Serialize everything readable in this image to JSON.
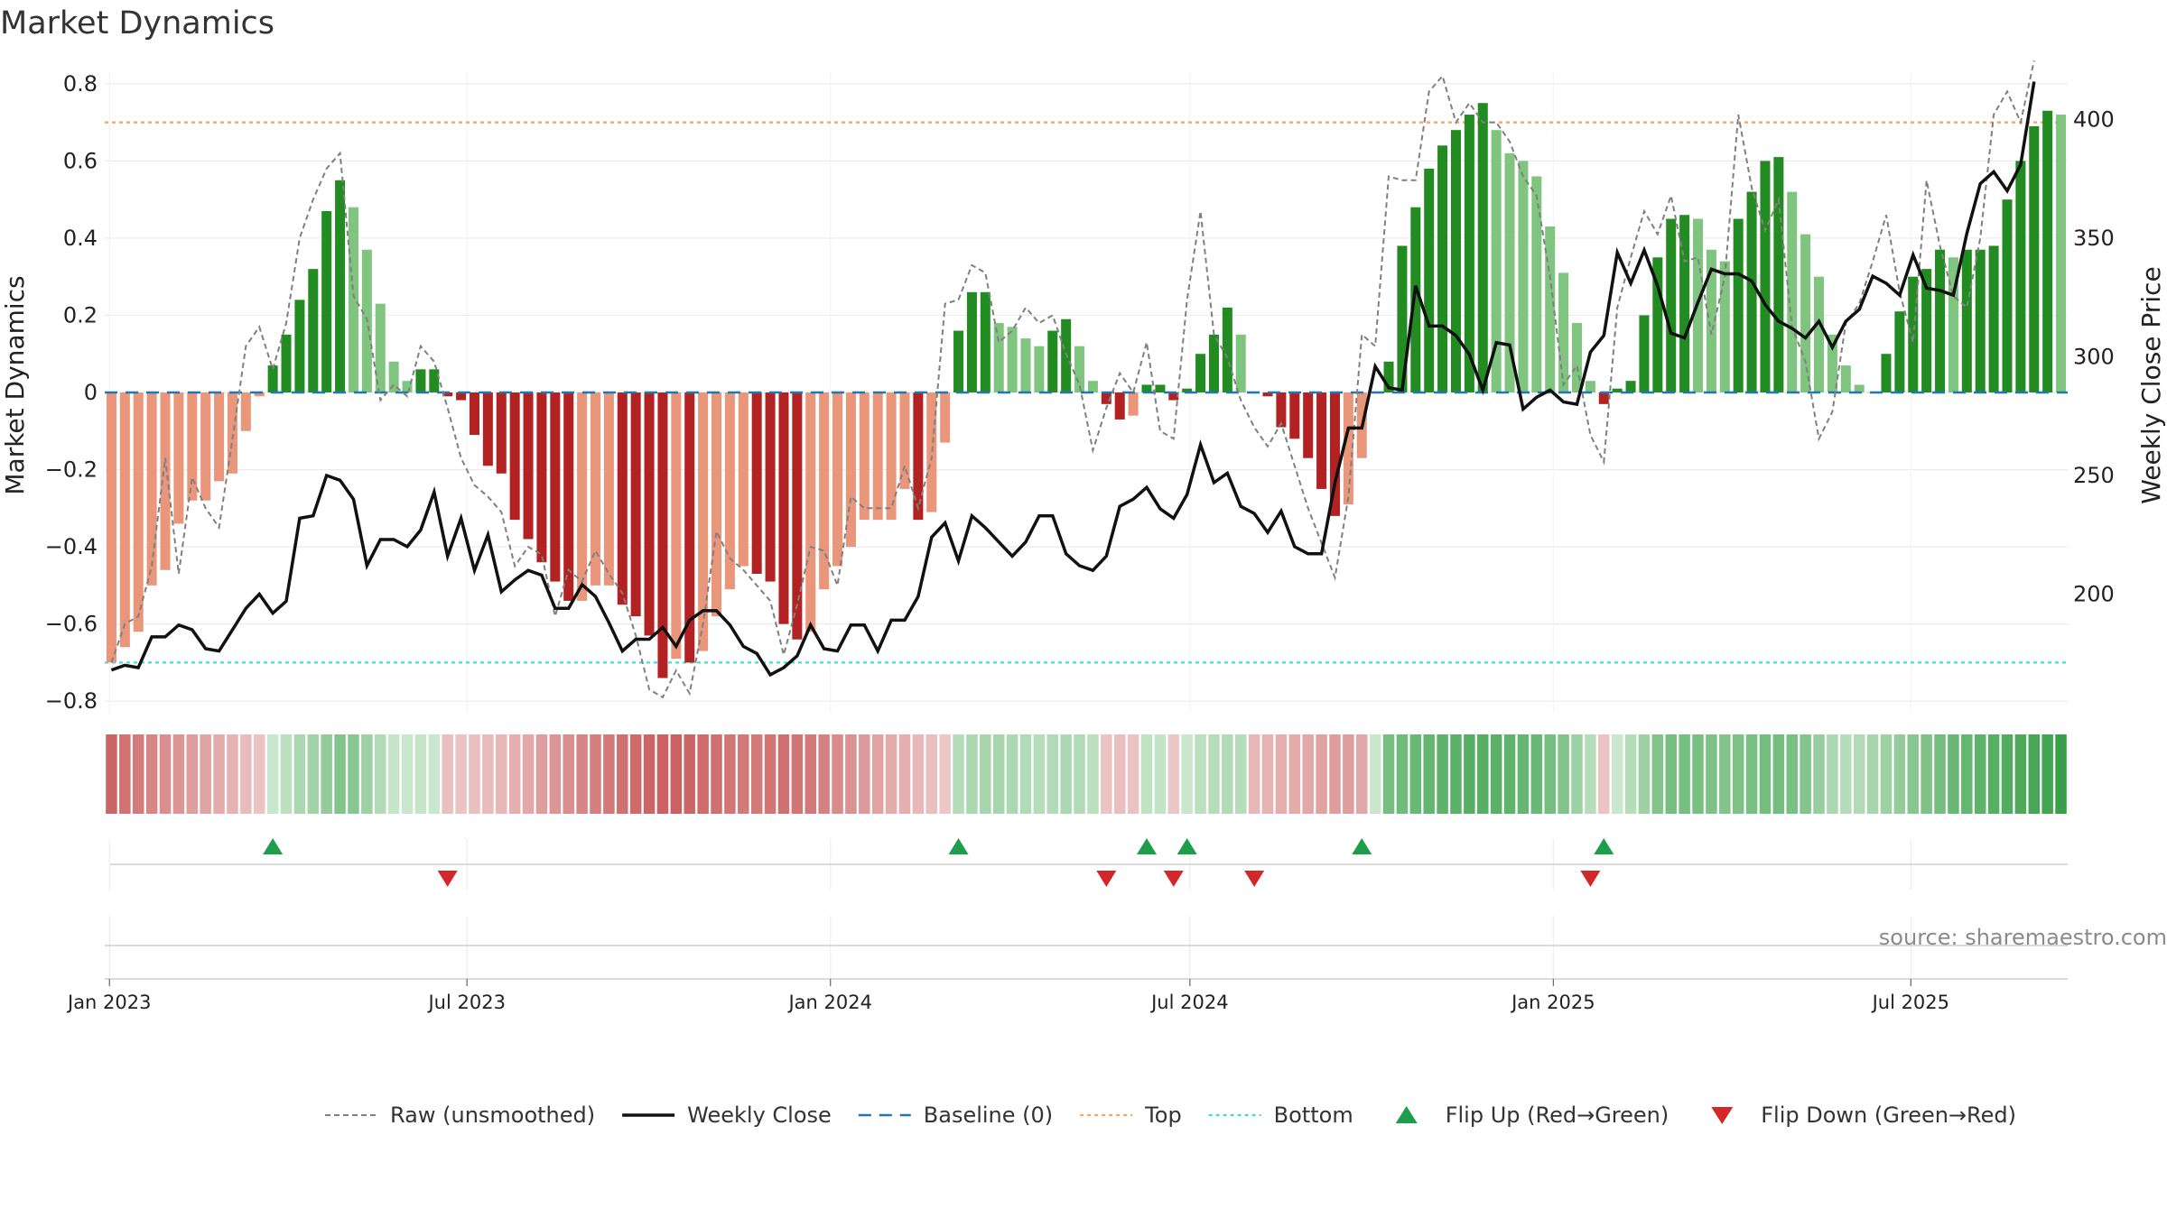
{
  "title": "Market Dynamics",
  "source_text": "source: sharemaestro.com",
  "colors": {
    "green_dark": "#228b22",
    "green_light": "#7fc47f",
    "red_dark": "#b22222",
    "red_light": "#e9967a",
    "close_line": "#111111",
    "raw_line": "#808080",
    "baseline": "#1f77b4",
    "top_line": "#f4a460",
    "bottom_line": "#40e0d0",
    "flip_up": "#1e9e4a",
    "flip_down": "#d62728"
  },
  "legend": [
    {
      "label": "Raw (unsmoothed)",
      "kind": "raw"
    },
    {
      "label": "Weekly Close",
      "kind": "close"
    },
    {
      "label": "Baseline (0)",
      "kind": "baseline"
    },
    {
      "label": "Top",
      "kind": "top"
    },
    {
      "label": "Bottom",
      "kind": "bottom"
    },
    {
      "label": "Flip Up (Red→Green)",
      "kind": "up"
    },
    {
      "label": "Flip Down (Green→Red)",
      "kind": "down"
    }
  ],
  "chart_data": {
    "type": "bar",
    "ylabel": "Market Dynamics",
    "y2label": "Weekly Close Price",
    "ylim": [
      -0.83,
      0.83
    ],
    "y2lim": [
      150,
      420
    ],
    "yticks": [
      "−0.8",
      "−0.6",
      "−0.4",
      "−0.2",
      "0",
      "0.2",
      "0.4",
      "0.6",
      "0.8"
    ],
    "y2ticks": [
      "200",
      "250",
      "300",
      "350",
      "400"
    ],
    "x_start": "2023-01-02",
    "x_end": "2025-09-15",
    "x_ticks": [
      {
        "date": "2023-01-01",
        "label": "Jan 2023"
      },
      {
        "date": "2023-07-01",
        "label": "Jul 2023"
      },
      {
        "date": "2024-01-01",
        "label": "Jan 2024"
      },
      {
        "date": "2024-07-01",
        "label": "Jul 2024"
      },
      {
        "date": "2025-01-01",
        "label": "Jan 2025"
      },
      {
        "date": "2025-07-01",
        "label": "Jul 2025"
      }
    ],
    "top": 0.7,
    "bottom": -0.7,
    "baseline": 0,
    "grid": true,
    "legend_position": "bottom",
    "series": [
      {
        "name": "Market Dynamics",
        "values": [
          -0.7,
          -0.66,
          -0.62,
          -0.5,
          -0.46,
          -0.34,
          -0.28,
          -0.28,
          -0.23,
          -0.21,
          -0.1,
          -0.01,
          0.07,
          0.15,
          0.24,
          0.32,
          0.47,
          0.55,
          0.48,
          0.37,
          0.23,
          0.08,
          0.03,
          0.06,
          0.06,
          -0.01,
          -0.02,
          -0.11,
          -0.19,
          -0.21,
          -0.33,
          -0.38,
          -0.44,
          -0.49,
          -0.54,
          -0.54,
          -0.5,
          -0.5,
          -0.55,
          -0.58,
          -0.63,
          -0.74,
          -0.69,
          -0.7,
          -0.67,
          -0.58,
          -0.51,
          -0.45,
          -0.47,
          -0.49,
          -0.6,
          -0.64,
          -0.62,
          -0.51,
          -0.45,
          -0.4,
          -0.33,
          -0.33,
          -0.33,
          -0.25,
          -0.33,
          -0.31,
          -0.13,
          0.16,
          0.26,
          0.26,
          0.18,
          0.17,
          0.14,
          0.12,
          0.16,
          0.19,
          0.12,
          0.03,
          -0.03,
          -0.07,
          -0.06,
          0.02,
          0.02,
          -0.02,
          0.01,
          0.1,
          0.15,
          0.22,
          0.15,
          0.0,
          -0.01,
          -0.09,
          -0.12,
          -0.17,
          -0.25,
          -0.32,
          -0.29,
          -0.17,
          0.0,
          0.08,
          0.38,
          0.48,
          0.58,
          0.64,
          0.68,
          0.72,
          0.75,
          0.68,
          0.62,
          0.6,
          0.56,
          0.43,
          0.31,
          0.18,
          0.03,
          -0.03,
          0.01,
          0.03,
          0.2,
          0.35,
          0.45,
          0.46,
          0.45,
          0.37,
          0.34,
          0.45,
          0.52,
          0.6,
          0.61,
          0.52,
          0.41,
          0.3,
          0.15,
          0.07,
          0.02,
          0.0,
          0.1,
          0.21,
          0.3,
          0.32,
          0.37,
          0.35,
          0.37,
          0.37,
          0.38,
          0.5,
          0.6,
          0.69,
          0.73,
          0.72
        ]
      },
      {
        "name": "Raw (unsmoothed)",
        "values": [
          -0.7,
          -0.6,
          -0.58,
          -0.45,
          -0.17,
          -0.47,
          -0.22,
          -0.3,
          -0.35,
          -0.12,
          0.12,
          0.17,
          0.06,
          0.18,
          0.4,
          0.5,
          0.58,
          0.62,
          0.25,
          0.19,
          -0.02,
          0.02,
          -0.01,
          0.12,
          0.08,
          -0.04,
          -0.17,
          -0.24,
          -0.27,
          -0.31,
          -0.45,
          -0.4,
          -0.42,
          -0.58,
          -0.46,
          -0.49,
          -0.41,
          -0.47,
          -0.52,
          -0.63,
          -0.77,
          -0.79,
          -0.72,
          -0.78,
          -0.6,
          -0.36,
          -0.43,
          -0.46,
          -0.5,
          -0.54,
          -0.68,
          -0.55,
          -0.4,
          -0.41,
          -0.5,
          -0.27,
          -0.3,
          -0.3,
          -0.3,
          -0.19,
          -0.3,
          -0.17,
          0.23,
          0.24,
          0.33,
          0.31,
          0.13,
          0.16,
          0.22,
          0.18,
          0.2,
          0.1,
          0.02,
          -0.15,
          -0.04,
          0.05,
          0.0,
          0.13,
          -0.1,
          -0.12,
          0.24,
          0.47,
          0.15,
          0.09,
          -0.02,
          -0.09,
          -0.14,
          -0.08,
          -0.19,
          -0.3,
          -0.39,
          -0.48,
          -0.27,
          0.15,
          0.12,
          0.56,
          0.55,
          0.55,
          0.78,
          0.82,
          0.7,
          0.75,
          0.7,
          0.7,
          0.65,
          0.56,
          0.51,
          0.3,
          0.02,
          0.07,
          -0.11,
          -0.18,
          0.22,
          0.35,
          0.47,
          0.41,
          0.51,
          0.34,
          0.35,
          0.15,
          0.3,
          0.72,
          0.53,
          0.42,
          0.5,
          0.17,
          0.08,
          -0.12,
          -0.05,
          0.18,
          0.23,
          0.34,
          0.46,
          0.26,
          0.13,
          0.55,
          0.38,
          0.25,
          0.22,
          0.4,
          0.72,
          0.78,
          0.7,
          0.86
        ]
      },
      {
        "name": "Weekly Close",
        "values": [
          168,
          170,
          169,
          182,
          182,
          187,
          185,
          177,
          176,
          185,
          194,
          200,
          192,
          197,
          232,
          233,
          250,
          248,
          240,
          212,
          223,
          223,
          220,
          227,
          243,
          216,
          232,
          210,
          225,
          201,
          206,
          210,
          208,
          194,
          194,
          204,
          199,
          188,
          176,
          181,
          181,
          186,
          178,
          189,
          193,
          193,
          187,
          178,
          175,
          166,
          169,
          174,
          187,
          177,
          176,
          187,
          187,
          176,
          189,
          189,
          199,
          224,
          230,
          214,
          233,
          228,
          222,
          216,
          222,
          233,
          233,
          217,
          212,
          210,
          216,
          237,
          240,
          245,
          236,
          232,
          242,
          263,
          247,
          251,
          237,
          234,
          226,
          235,
          220,
          217,
          217,
          247,
          270,
          270,
          296,
          287,
          286,
          330,
          313,
          313,
          309,
          301,
          286,
          306,
          305,
          278,
          283,
          286,
          281,
          280,
          302,
          309,
          344,
          331,
          345,
          330,
          310,
          308,
          323,
          337,
          335,
          335,
          332,
          322,
          315,
          312,
          308,
          315,
          304,
          315,
          320,
          334,
          331,
          326,
          343,
          329,
          328,
          326,
          352,
          373,
          378,
          370,
          381,
          416
        ]
      }
    ],
    "flip_up_weeks": [
      12,
      63,
      77,
      80,
      93,
      111
    ],
    "flip_down_weeks": [
      25,
      74,
      79,
      85,
      110
    ],
    "regime_strip": [
      -0.58,
      -0.51,
      -0.47,
      -0.42,
      -0.38,
      -0.34,
      -0.3,
      -0.27,
      -0.24,
      -0.2,
      -0.16,
      -0.12,
      0.12,
      0.18,
      0.24,
      0.28,
      0.34,
      0.4,
      0.38,
      0.3,
      0.22,
      0.14,
      0.12,
      0.14,
      0.12,
      -0.14,
      -0.12,
      -0.14,
      -0.16,
      -0.18,
      -0.22,
      -0.26,
      -0.3,
      -0.34,
      -0.38,
      -0.42,
      -0.45,
      -0.48,
      -0.52,
      -0.55,
      -0.58,
      -0.6,
      -0.6,
      -0.58,
      -0.55,
      -0.52,
      -0.5,
      -0.48,
      -0.48,
      -0.5,
      -0.52,
      -0.5,
      -0.48,
      -0.44,
      -0.4,
      -0.36,
      -0.32,
      -0.28,
      -0.24,
      -0.22,
      -0.18,
      -0.14,
      -0.1,
      0.2,
      0.24,
      0.26,
      0.26,
      0.24,
      0.22,
      0.2,
      0.22,
      0.24,
      0.22,
      0.18,
      -0.12,
      -0.14,
      -0.12,
      0.16,
      0.15,
      -0.1,
      0.12,
      0.18,
      0.2,
      0.22,
      0.2,
      -0.18,
      -0.2,
      -0.22,
      -0.24,
      -0.26,
      -0.28,
      -0.3,
      -0.3,
      -0.26,
      0.12,
      0.45,
      0.48,
      0.5,
      0.52,
      0.55,
      0.56,
      0.58,
      0.58,
      0.56,
      0.54,
      0.52,
      0.5,
      0.45,
      0.4,
      0.3,
      0.2,
      -0.12,
      0.12,
      0.2,
      0.3,
      0.4,
      0.45,
      0.45,
      0.44,
      0.42,
      0.4,
      0.42,
      0.44,
      0.46,
      0.46,
      0.44,
      0.4,
      0.32,
      0.24,
      0.2,
      0.22,
      0.26,
      0.3,
      0.34,
      0.38,
      0.42,
      0.46,
      0.5,
      0.52,
      0.55,
      0.58,
      0.6,
      0.62,
      0.64,
      0.66,
      0.7
    ]
  }
}
